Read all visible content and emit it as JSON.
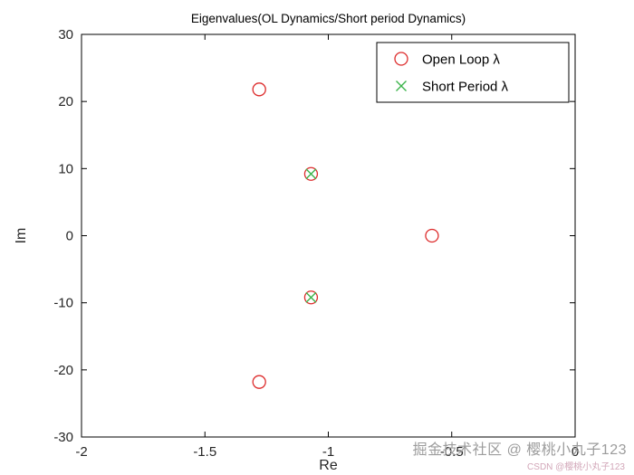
{
  "chart_data": {
    "type": "scatter",
    "title": "Eigenvalues(OL Dynamics/Short period Dynamics)",
    "xlabel": "Re",
    "ylabel": "Im",
    "xlim": [
      -2,
      0
    ],
    "ylim": [
      -30,
      30
    ],
    "xticks": [
      -2,
      -1.5,
      -1,
      -0.5,
      0
    ],
    "yticks": [
      -30,
      -20,
      -10,
      0,
      10,
      20,
      30
    ],
    "grid": false,
    "legend_position": "top-right",
    "axis_color": "#000000",
    "tick_label_color": "#262626",
    "series": [
      {
        "name": "Open Loop λ",
        "marker": "circle",
        "color": "#dd2c2c",
        "points": [
          {
            "x": -1.28,
            "y": 21.8
          },
          {
            "x": -1.07,
            "y": 9.2
          },
          {
            "x": -0.58,
            "y": 0
          },
          {
            "x": -1.07,
            "y": -9.2
          },
          {
            "x": -1.28,
            "y": -21.8
          }
        ]
      },
      {
        "name": "Short Period λ",
        "marker": "x",
        "color": "#3cb44b",
        "points": [
          {
            "x": -1.07,
            "y": 9.2
          },
          {
            "x": -1.07,
            "y": -9.2
          }
        ]
      }
    ]
  },
  "watermark": {
    "main": "掘金技术社区 @ 樱桃小丸子123",
    "main_color": "#9c9c9c",
    "sub": "CSDN @樱桃小丸子123",
    "sub_color": "#d2a6b8"
  }
}
